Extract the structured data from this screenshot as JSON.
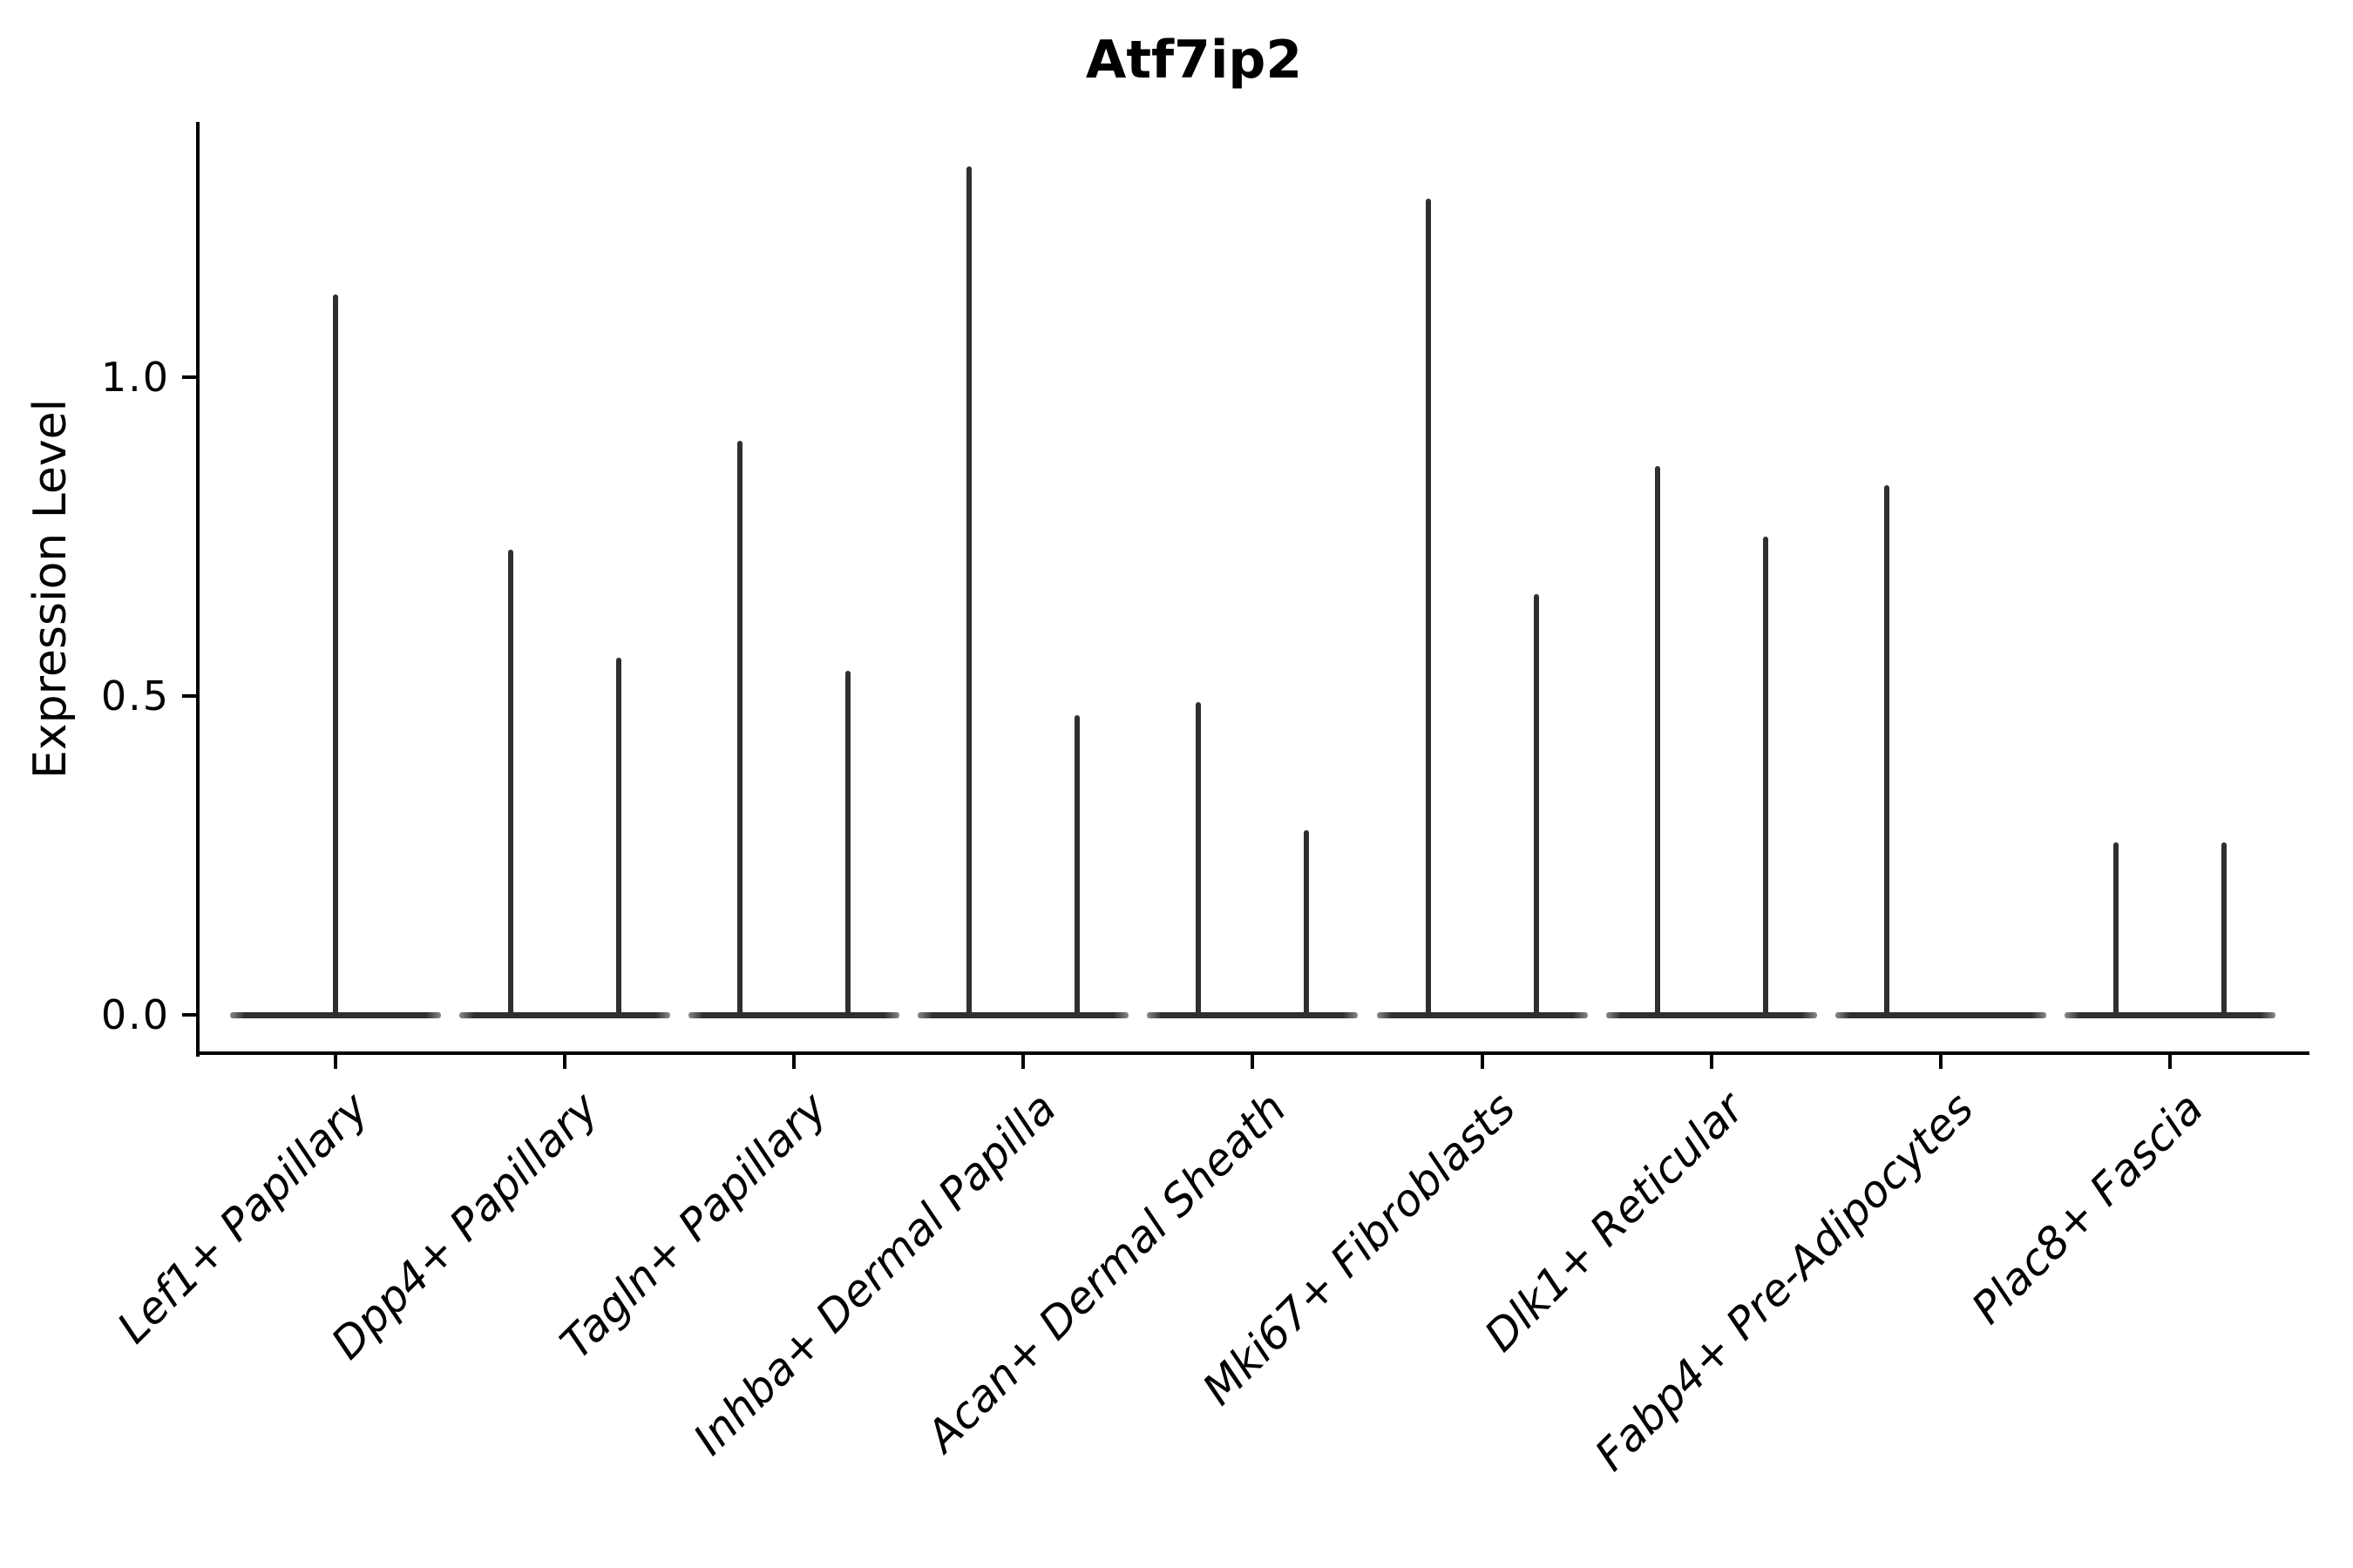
{
  "title": "Atf7ip2",
  "y_axis": {
    "label": "Expression Level",
    "tick_labels": [
      "0.0",
      "0.5",
      "1.0"
    ]
  },
  "colors": {
    "violin_line": "#2f2f2f",
    "violin_base_edge": "#8a8a8a",
    "axis": "#000000",
    "text": "#000000",
    "background": "#ffffff"
  },
  "chart_data": {
    "type": "violin",
    "title": "Atf7ip2",
    "xlabel": "",
    "ylabel": "Expression Level",
    "ylim": [
      -0.06,
      1.4
    ],
    "yticks": [
      0.0,
      0.5,
      1.0
    ],
    "ytick_labels": [
      "0.0",
      "0.5",
      "1.0"
    ],
    "grid": false,
    "legend_position": "none",
    "categories": [
      "Lef1+ Papillary",
      "Dpp4+ Papillary",
      "Tagln+ Papillary",
      "Inhba+ Dermal Papilla",
      "Acan+ Dermal Sheath",
      "Mki67+ Fibroblasts",
      "Dlk1+ Reticular",
      "Fabp4+ Pre-Adipocytes",
      "Plac8+ Fascia"
    ],
    "violins": [
      {
        "category": "Lef1+ Papillary",
        "spike_max_values": [
          1.13
        ],
        "spike_slots": [
          0
        ]
      },
      {
        "category": "Dpp4+ Papillary",
        "spike_max_values": [
          0.73,
          0.56
        ],
        "spike_slots": [
          -1,
          1
        ]
      },
      {
        "category": "Tagln+ Papillary",
        "spike_max_values": [
          0.9,
          0.54
        ],
        "spike_slots": [
          -1,
          1
        ]
      },
      {
        "category": "Inhba+ Dermal Papilla",
        "spike_max_values": [
          1.33,
          0.47
        ],
        "spike_slots": [
          -1,
          1
        ]
      },
      {
        "category": "Acan+ Dermal Sheath",
        "spike_max_values": [
          0.49,
          0.29
        ],
        "spike_slots": [
          -1,
          1
        ]
      },
      {
        "category": "Mki67+ Fibroblasts",
        "spike_max_values": [
          1.28,
          0.66
        ],
        "spike_slots": [
          -1,
          1
        ]
      },
      {
        "category": "Dlk1+ Reticular",
        "spike_max_values": [
          0.86,
          0.75
        ],
        "spike_slots": [
          -1,
          1
        ]
      },
      {
        "category": "Fabp4+ Pre-Adipocytes",
        "spike_max_values": [
          0.83
        ],
        "spike_slots": [
          -1
        ]
      },
      {
        "category": "Plac8+ Fascia",
        "spike_max_values": [
          0.27,
          0.27
        ],
        "spike_slots": [
          -1,
          1
        ]
      }
    ],
    "baseline_value": 0.0
  }
}
